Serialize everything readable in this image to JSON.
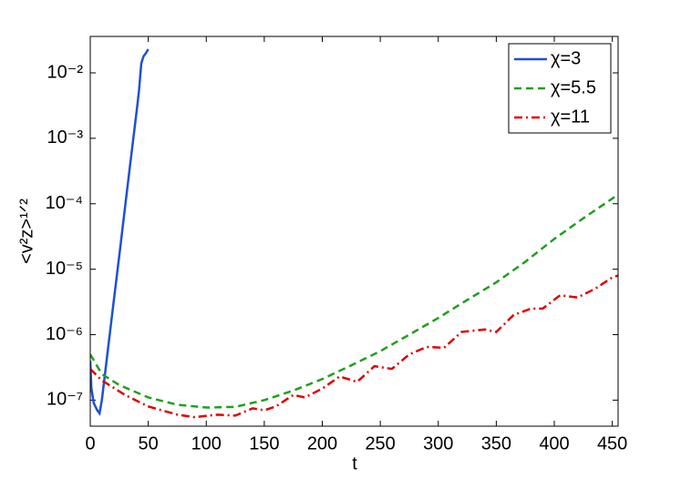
{
  "chart_data": {
    "type": "line",
    "xlabel": "t",
    "ylabel": "<v²z>¹ᐟ²",
    "log_y": true,
    "xlim": [
      0,
      455
    ],
    "ylim": [
      4e-08,
      0.036
    ],
    "xticks": [
      0,
      50,
      100,
      150,
      200,
      250,
      300,
      350,
      400,
      450
    ],
    "yticks": [
      {
        "value": 1e-07,
        "label": "10⁻⁷"
      },
      {
        "value": 1e-06,
        "label": "10⁻⁶"
      },
      {
        "value": 1e-05,
        "label": "10⁻⁵"
      },
      {
        "value": 0.0001,
        "label": "10⁻⁴"
      },
      {
        "value": 0.001,
        "label": "10⁻³"
      },
      {
        "value": 0.01,
        "label": "10⁻²"
      }
    ],
    "legend_position": "top-right",
    "series": [
      {
        "name": "χ=3",
        "color": "#1f4fd8",
        "linestyle": "solid",
        "x": [
          0,
          1,
          3,
          6,
          8,
          10,
          15,
          20,
          25,
          30,
          35,
          40,
          42,
          44,
          46,
          48,
          50
        ],
        "values": [
          4e-07,
          1.5e-07,
          9e-08,
          7e-08,
          6.3e-08,
          1e-07,
          5.5e-07,
          3e-06,
          1.6e-05,
          8.9e-05,
          0.00049,
          0.0026,
          0.0053,
          0.014,
          0.018,
          0.02,
          0.023
        ]
      },
      {
        "name": "χ=5.5",
        "color": "#1fa01f",
        "linestyle": "dashed",
        "x": [
          0,
          10,
          25,
          50,
          75,
          100,
          125,
          150,
          175,
          200,
          225,
          250,
          275,
          300,
          325,
          350,
          375,
          400,
          425,
          450,
          455
        ],
        "values": [
          5e-07,
          2.5e-07,
          1.7e-07,
          1.1e-07,
          8.5e-08,
          7.7e-08,
          7.9e-08,
          1e-07,
          1.4e-07,
          2.1e-07,
          3.4e-07,
          5.6e-07,
          1e-06,
          1.8e-06,
          3.4e-06,
          6.3e-06,
          1.3e-05,
          2.9e-05,
          6e-05,
          0.00012,
          0.00014
        ]
      },
      {
        "name": "χ=11",
        "color": "#e00000",
        "linestyle": "dashdot",
        "x": [
          0,
          10,
          30,
          50,
          75,
          90,
          110,
          125,
          140,
          150,
          160,
          175,
          185,
          200,
          215,
          230,
          245,
          260,
          275,
          290,
          305,
          320,
          340,
          350,
          365,
          380,
          390,
          405,
          420,
          435,
          450,
          455
        ],
        "values": [
          3e-07,
          2e-07,
          1.2e-07,
          8e-08,
          6e-08,
          5.5e-08,
          6e-08,
          5.8e-08,
          7.5e-08,
          7e-08,
          8e-08,
          1.2e-07,
          1.1e-07,
          1.5e-07,
          2.3e-07,
          1.9e-07,
          3.3e-07,
          3e-07,
          5e-07,
          6.5e-07,
          6.3e-07,
          1.1e-06,
          1.2e-06,
          1.1e-06,
          2e-06,
          2.5e-06,
          2.5e-06,
          4e-06,
          3.7e-06,
          5e-06,
          7.5e-06,
          8e-06
        ]
      }
    ]
  }
}
